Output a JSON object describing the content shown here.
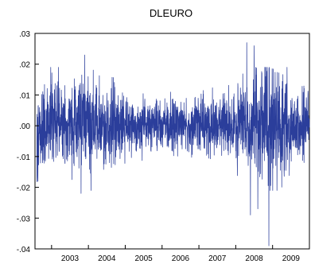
{
  "chart_data": {
    "type": "line",
    "title": "DLEURO",
    "xlabel": "",
    "ylabel": "",
    "x_range": [
      "2002-07",
      "2009-12"
    ],
    "x_tick_labels": [
      "2003",
      "2004",
      "2005",
      "2006",
      "2007",
      "2008",
      "2009"
    ],
    "y_tick_labels": [
      ".03",
      ".02",
      ".01",
      ".00",
      "-.01",
      "-.02",
      "-.03",
      "-.04"
    ],
    "ylim": [
      -0.04,
      0.03
    ],
    "grid": false,
    "legend": "none",
    "line_color": "#2b3e9b",
    "series": [
      {
        "frequency": "daily",
        "values_summary": "daily log changes, mostly within ±0.01",
        "notable_points": [
          {
            "x": "2003.9",
            "y": 0.023
          },
          {
            "x": "2003.8",
            "y": -0.022
          },
          {
            "x": "2008.3",
            "y": 0.027
          },
          {
            "x": "2008.4",
            "y": 0.026
          },
          {
            "x": "2008.5",
            "y": 0.026
          },
          {
            "x": "2008.9",
            "y": -0.039
          },
          {
            "x": "2008.4",
            "y": -0.029
          },
          {
            "x": "2008.6",
            "y": -0.027
          }
        ]
      }
    ]
  }
}
